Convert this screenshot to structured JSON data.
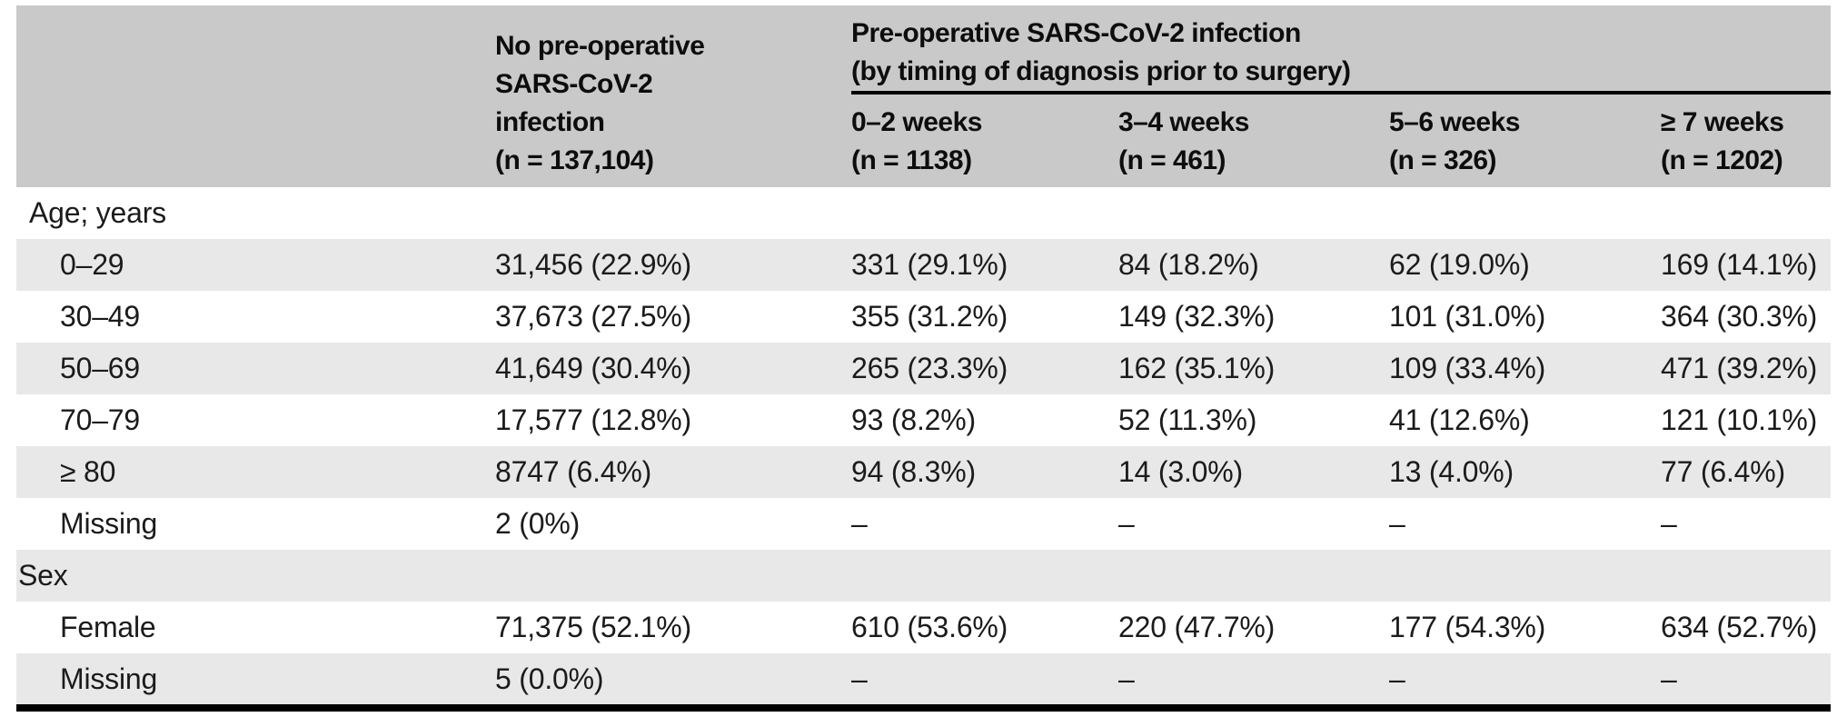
{
  "colors": {
    "header_bg": "#c9c9c9",
    "stripe_bg": "#e8e8e8",
    "rule": "#000000",
    "text": "#1b1b1b"
  },
  "table": {
    "header": {
      "no_preop": {
        "lines": [
          "No pre-operative",
          "SARS-CoV-2",
          "infection",
          "(n = 137,104)"
        ]
      },
      "preop_span": {
        "line1": "Pre-operative SARS-CoV-2 infection",
        "line2": "(by timing of diagnosis prior to surgery)"
      },
      "subcols": [
        {
          "label": "0–2 weeks",
          "n": "(n = 1138)"
        },
        {
          "label": "3–4 weeks",
          "n": "(n = 461)"
        },
        {
          "label": "5–6 weeks",
          "n": "(n = 326)"
        },
        {
          "label": "≥ 7 weeks",
          "n": "(n = 1202)"
        }
      ]
    },
    "rows": [
      {
        "label": "Age; years",
        "type": "section",
        "values": [
          "",
          "",
          "",
          "",
          ""
        ]
      },
      {
        "label": "0–29",
        "type": "data",
        "values": [
          "31,456 (22.9%)",
          "331 (29.1%)",
          "84 (18.2%)",
          "62 (19.0%)",
          "169 (14.1%)"
        ]
      },
      {
        "label": "30–49",
        "type": "data",
        "values": [
          "37,673 (27.5%)",
          "355 (31.2%)",
          "149 (32.3%)",
          "101 (31.0%)",
          "364 (30.3%)"
        ]
      },
      {
        "label": "50–69",
        "type": "data",
        "values": [
          "41,649 (30.4%)",
          "265 (23.3%)",
          "162 (35.1%)",
          "109 (33.4%)",
          "471 (39.2%)"
        ]
      },
      {
        "label": "70–79",
        "type": "data",
        "values": [
          "17,577 (12.8%)",
          "93 (8.2%)",
          "52 (11.3%)",
          "41 (12.6%)",
          "121 (10.1%)"
        ]
      },
      {
        "label": "≥ 80",
        "type": "data",
        "values": [
          "8747 (6.4%)",
          "94 (8.3%)",
          "14 (3.0%)",
          "13 (4.0%)",
          "77 (6.4%)"
        ]
      },
      {
        "label": "Missing",
        "type": "data",
        "values": [
          "2 (0%)",
          "–",
          "–",
          "–",
          "–"
        ]
      },
      {
        "label": "Sex",
        "type": "section",
        "values": [
          "",
          "",
          "",
          "",
          ""
        ]
      },
      {
        "label": "Female",
        "type": "data",
        "values": [
          "71,375 (52.1%)",
          "610 (53.6%)",
          "220 (47.7%)",
          "177 (54.3%)",
          "634 (52.7%)"
        ]
      },
      {
        "label": "Missing",
        "type": "data",
        "values": [
          "5 (0.0%)",
          "–",
          "–",
          "–",
          "–"
        ]
      }
    ]
  }
}
